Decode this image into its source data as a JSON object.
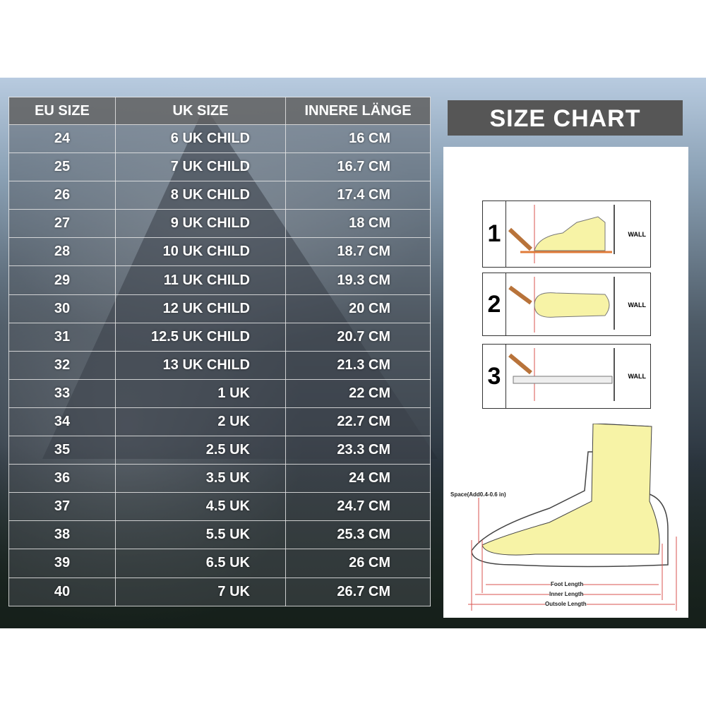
{
  "table": {
    "headers": [
      "EU SIZE",
      "UK SIZE",
      "INNERE LÄNGE"
    ],
    "rows": [
      [
        "24",
        "6 UK CHILD",
        "16 CM"
      ],
      [
        "25",
        "7 UK CHILD",
        "16.7 CM"
      ],
      [
        "26",
        "8 UK CHILD",
        "17.4 CM"
      ],
      [
        "27",
        "9 UK CHILD",
        "18 CM"
      ],
      [
        "28",
        "10 UK CHILD",
        "18.7 CM"
      ],
      [
        "29",
        "11 UK CHILD",
        "19.3 CM"
      ],
      [
        "30",
        "12 UK CHILD",
        "20 CM"
      ],
      [
        "31",
        "12.5 UK CHILD",
        "20.7 CM"
      ],
      [
        "32",
        "13 UK CHILD",
        "21.3 CM"
      ],
      [
        "33",
        "1 UK",
        "22 CM"
      ],
      [
        "34",
        "2 UK",
        "22.7 CM"
      ],
      [
        "35",
        "2.5 UK",
        "23.3 CM"
      ],
      [
        "36",
        "3.5 UK",
        "24 CM"
      ],
      [
        "37",
        "4.5 UK",
        "24.7 CM"
      ],
      [
        "38",
        "5.5 UK",
        "25.3 CM"
      ],
      [
        "39",
        "6.5 UK",
        "26 CM"
      ],
      [
        "40",
        "7 UK",
        "26.7 CM"
      ]
    ]
  },
  "banner": "SIZE CHART",
  "steps": [
    {
      "num": "1",
      "wall": "WALL"
    },
    {
      "num": "2",
      "wall": "WALL"
    },
    {
      "num": "3",
      "wall": "WALL"
    }
  ],
  "diagram": {
    "space": "Space(Add0.4-0.6 in)",
    "foot_length": "Foot Length",
    "inner_length": "Inner Length",
    "outsole_length": "Outsole Length"
  },
  "colors": {
    "foot": "#f7f3a6",
    "measure": "#d9534f",
    "banner": "#565656"
  }
}
